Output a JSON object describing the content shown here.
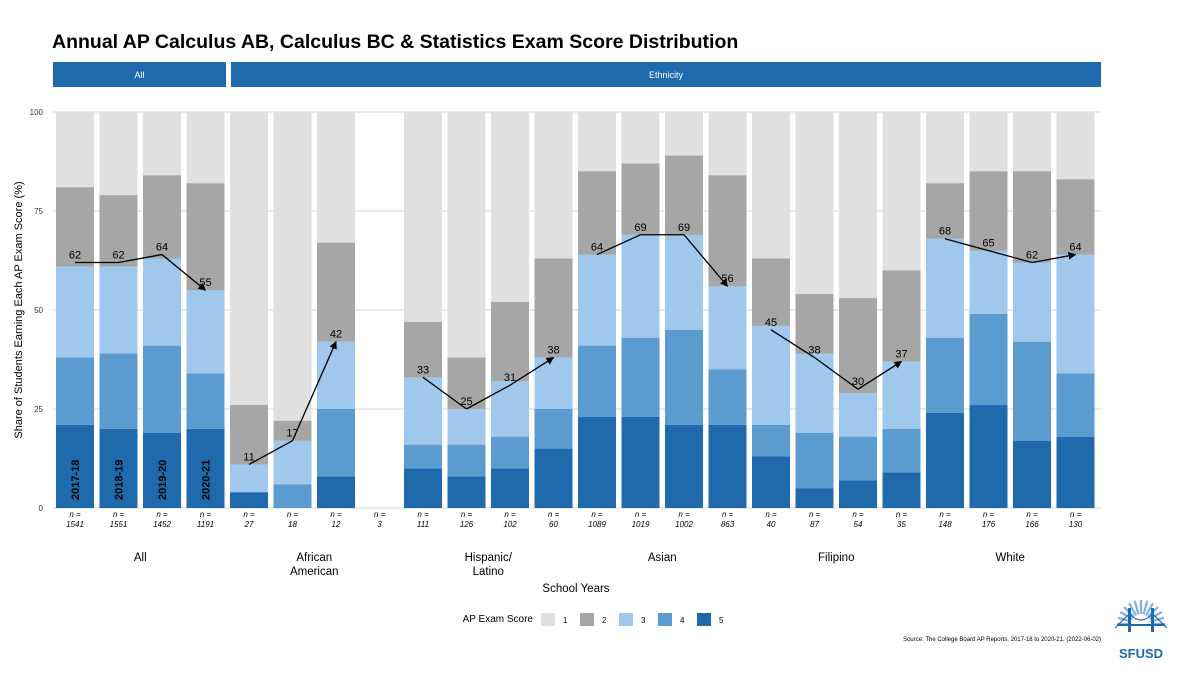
{
  "chart_data": {
    "type": "bar",
    "stacked": true,
    "title": "Annual AP Calculus AB, Calculus BC & Statistics Exam Score Distribution",
    "panels": [
      "All",
      "Ethnicity"
    ],
    "xlabel": "School Years",
    "ylabel": "Share of Students Earning Each AP Exam Score (%)",
    "ylim": [
      0,
      100
    ],
    "yticks": [
      0,
      25,
      50,
      75,
      100
    ],
    "years": [
      "2017-18",
      "2018-19",
      "2019-20",
      "2020-21"
    ],
    "legend_title": "AP Exam Score",
    "legend": [
      {
        "score": "1",
        "color": "#e0e0e0"
      },
      {
        "score": "2",
        "color": "#a6a6a6"
      },
      {
        "score": "3",
        "color": "#9fc8ec"
      },
      {
        "score": "4",
        "color": "#5b9bd0"
      },
      {
        "score": "5",
        "color": "#1f6aad"
      }
    ],
    "n_label": "n =",
    "groups": [
      {
        "name": "All",
        "label_lines": [
          "All"
        ],
        "bars": [
          {
            "year": "2017-18",
            "n": "1541",
            "s5": 21,
            "s4": 17,
            "s3": 23,
            "s2": 20
          },
          {
            "year": "2018-19",
            "n": "1551",
            "s5": 20,
            "s4": 19,
            "s3": 22,
            "s2": 18
          },
          {
            "year": "2019-20",
            "n": "1452",
            "s5": 19,
            "s4": 22,
            "s3": 22,
            "s2": 21
          },
          {
            "year": "2020-21",
            "n": "1191",
            "s5": 20,
            "s4": 14,
            "s3": 21,
            "s2": 27
          }
        ],
        "pass": [
          "62",
          "62",
          "64",
          "55"
        ]
      },
      {
        "name": "African American",
        "label_lines": [
          "African",
          "American"
        ],
        "bars": [
          {
            "year": "2017-18",
            "n": "27",
            "s5": 4,
            "s4": 0,
            "s3": 7,
            "s2": 15
          },
          {
            "year": "2018-19",
            "n": "18",
            "s5": 0,
            "s4": 6,
            "s3": 11,
            "s2": 5
          },
          {
            "year": "2019-20",
            "n": "12",
            "s5": 8,
            "s4": 17,
            "s3": 17,
            "s2": 25
          },
          {
            "year": "2020-21",
            "n": "3",
            "s5": 0,
            "s4": 0,
            "s3": 0,
            "s2": 0,
            "empty": true
          }
        ],
        "pass": [
          "11",
          "17",
          "42",
          ""
        ]
      },
      {
        "name": "Hispanic/Latino",
        "label_lines": [
          "Hispanic/",
          "Latino"
        ],
        "bars": [
          {
            "year": "2017-18",
            "n": "111",
            "s5": 10,
            "s4": 6,
            "s3": 17,
            "s2": 14
          },
          {
            "year": "2018-19",
            "n": "126",
            "s5": 8,
            "s4": 8,
            "s3": 9,
            "s2": 13
          },
          {
            "year": "2019-20",
            "n": "102",
            "s5": 10,
            "s4": 8,
            "s3": 14,
            "s2": 20
          },
          {
            "year": "2020-21",
            "n": "60",
            "s5": 15,
            "s4": 10,
            "s3": 13,
            "s2": 25
          }
        ],
        "pass": [
          "33",
          "25",
          "31",
          "38"
        ]
      },
      {
        "name": "Asian",
        "label_lines": [
          "Asian"
        ],
        "bars": [
          {
            "year": "2017-18",
            "n": "1089",
            "s5": 23,
            "s4": 18,
            "s3": 23,
            "s2": 21
          },
          {
            "year": "2018-19",
            "n": "1019",
            "s5": 23,
            "s4": 20,
            "s3": 26,
            "s2": 18
          },
          {
            "year": "2019-20",
            "n": "1002",
            "s5": 21,
            "s4": 24,
            "s3": 24,
            "s2": 20
          },
          {
            "year": "2020-21",
            "n": "863",
            "s5": 21,
            "s4": 14,
            "s3": 21,
            "s2": 28
          }
        ],
        "pass": [
          "64",
          "69",
          "69",
          "56"
        ]
      },
      {
        "name": "Filipino",
        "label_lines": [
          "Filipino"
        ],
        "bars": [
          {
            "year": "2017-18",
            "n": "40",
            "s5": 13,
            "s4": 8,
            "s3": 25,
            "s2": 17
          },
          {
            "year": "2018-19",
            "n": "87",
            "s5": 5,
            "s4": 14,
            "s3": 20,
            "s2": 15
          },
          {
            "year": "2019-20",
            "n": "54",
            "s5": 7,
            "s4": 11,
            "s3": 11,
            "s2": 24
          },
          {
            "year": "2020-21",
            "n": "35",
            "s5": 9,
            "s4": 11,
            "s3": 17,
            "s2": 23
          }
        ],
        "pass": [
          "45",
          "38",
          "30",
          "37"
        ]
      },
      {
        "name": "White",
        "label_lines": [
          "White"
        ],
        "bars": [
          {
            "year": "2017-18",
            "n": "148",
            "s5": 24,
            "s4": 19,
            "s3": 25,
            "s2": 14
          },
          {
            "year": "2018-19",
            "n": "176",
            "s5": 26,
            "s4": 23,
            "s3": 16,
            "s2": 20
          },
          {
            "year": "2019-20",
            "n": "166",
            "s5": 17,
            "s4": 25,
            "s3": 20,
            "s2": 23
          },
          {
            "year": "2020-21",
            "n": "130",
            "s5": 18,
            "s4": 16,
            "s3": 30,
            "s2": 19
          }
        ],
        "pass": [
          "68",
          "65",
          "62",
          "64"
        ]
      }
    ],
    "source": "Source: The College Board AP Reports, 2017-18 to 2020-21. (2022-06-02)"
  },
  "logo": {
    "text": "SFUSD",
    "color": "#1f6aad"
  }
}
